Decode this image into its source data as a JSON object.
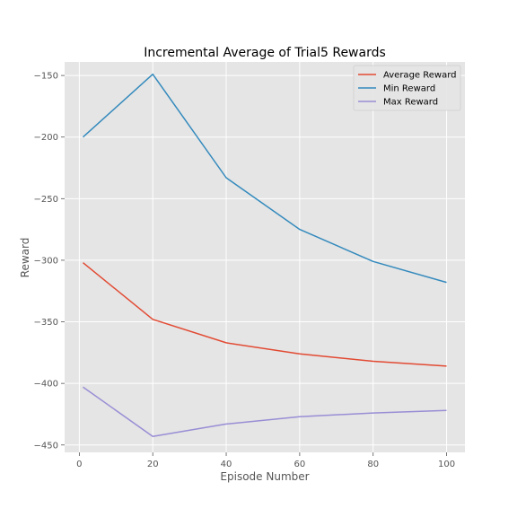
{
  "chart_data": {
    "type": "line",
    "title": "Incremental Average of Trial5 Rewards",
    "xlabel": "Episode Number",
    "ylabel": "Reward",
    "xlim": [
      -4.0,
      105.0
    ],
    "ylim": [
      -456.0,
      -139.0
    ],
    "xticks": [
      0,
      20,
      40,
      60,
      80,
      100
    ],
    "yticks": [
      -450,
      -400,
      -350,
      -300,
      -250,
      -200,
      -150
    ],
    "xtick_labels": [
      "0",
      "20",
      "40",
      "60",
      "80",
      "100"
    ],
    "ytick_labels": [
      "−450",
      "−400",
      "−350",
      "−300",
      "−250",
      "−200",
      "−150"
    ],
    "grid": true,
    "legend_position": "top-right",
    "x": [
      1,
      20,
      40,
      60,
      80,
      100
    ],
    "series": [
      {
        "name": "Average Reward",
        "color": "#E24A33",
        "values": [
          -302,
          -348,
          -367,
          -376,
          -382,
          -386
        ]
      },
      {
        "name": "Min Reward",
        "color": "#348ABD",
        "values": [
          -200,
          -149,
          -233,
          -275,
          -301,
          -318
        ]
      },
      {
        "name": "Max Reward",
        "color": "#988ED5",
        "values": [
          -403,
          -443,
          -433,
          -427,
          -424,
          -422
        ]
      }
    ]
  }
}
